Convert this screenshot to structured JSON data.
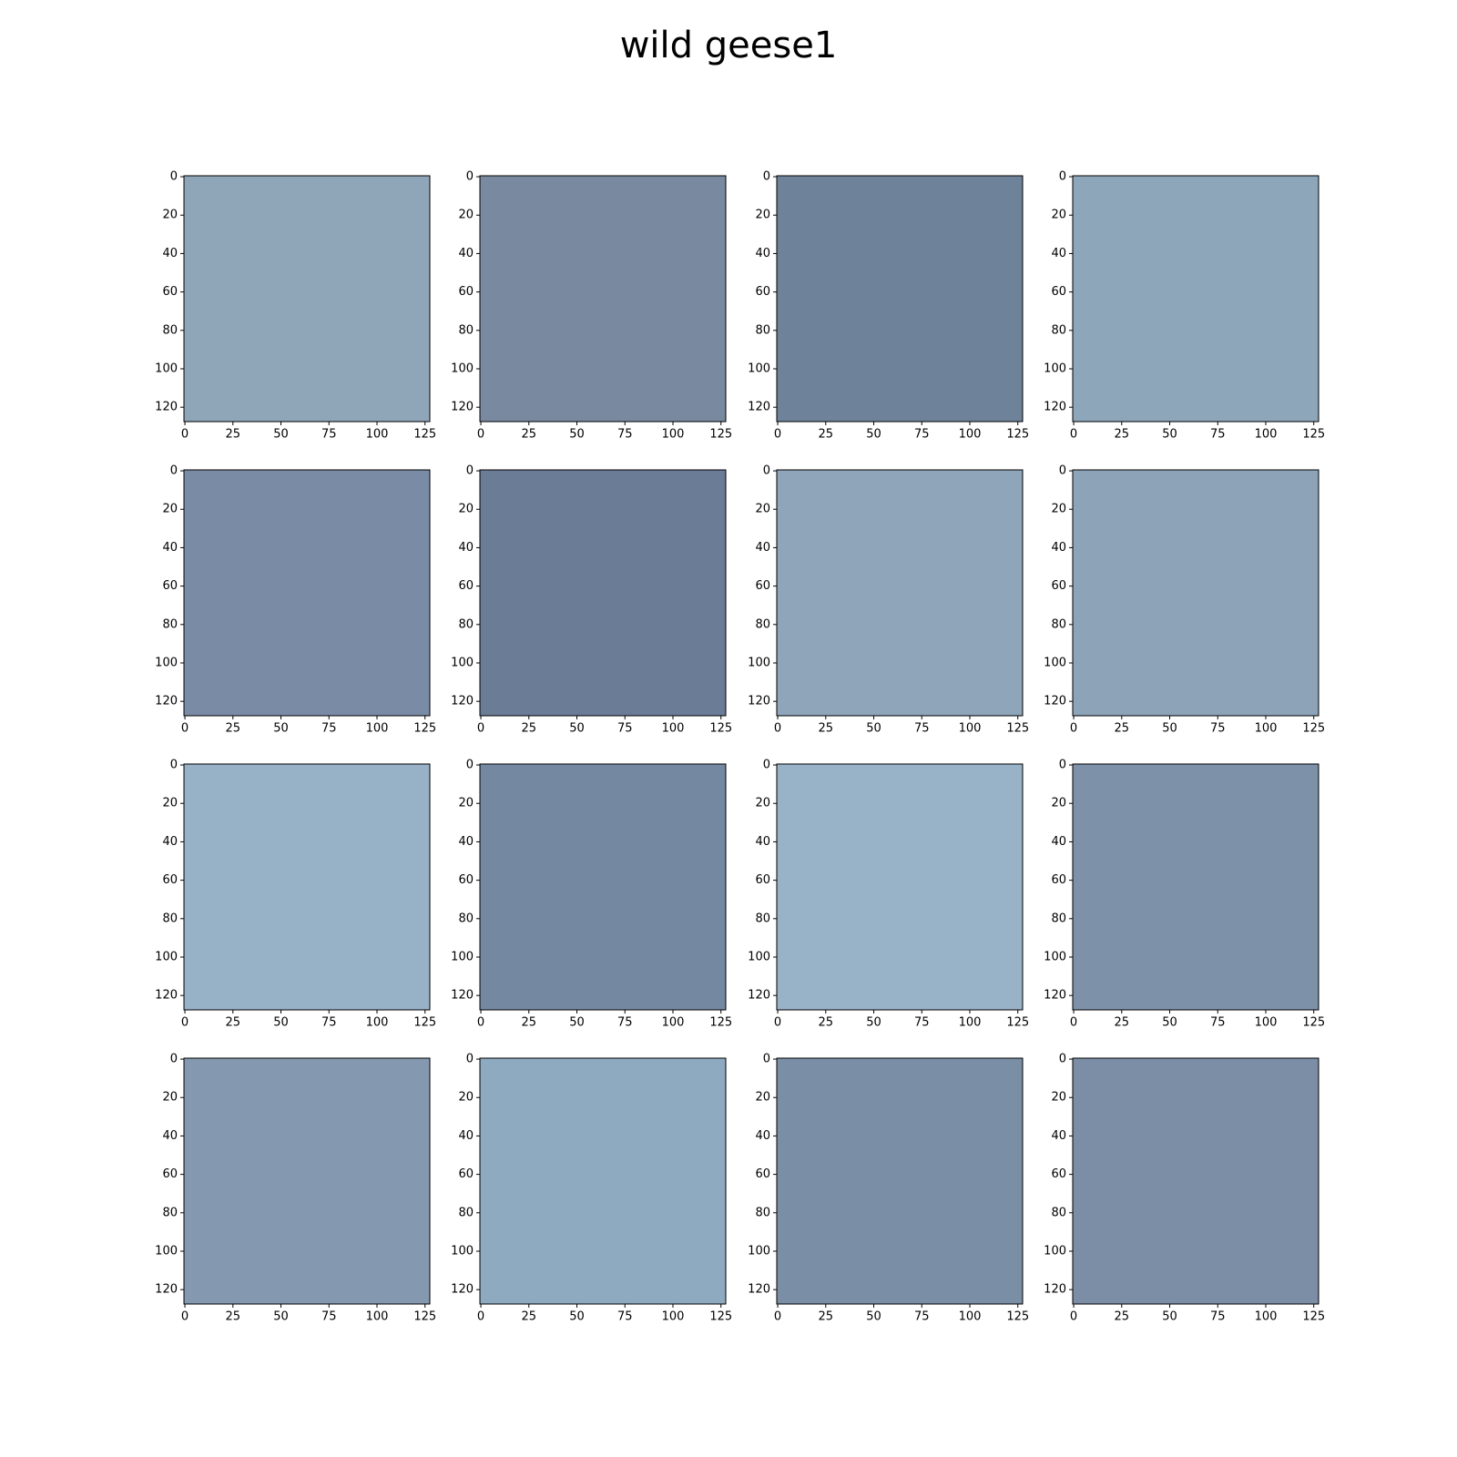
{
  "title": "wild geese1",
  "chart_data": [
    {
      "type": "image",
      "color": "#8fa5b8",
      "xlim": [
        -0.5,
        127.5
      ],
      "ylim": [
        127.5,
        -0.5
      ],
      "xticks": [
        0,
        25,
        50,
        75,
        100,
        125
      ],
      "yticks": [
        0,
        20,
        40,
        60,
        80,
        100,
        120
      ]
    },
    {
      "type": "image",
      "color": "#7889a0",
      "xlim": [
        -0.5,
        127.5
      ],
      "ylim": [
        127.5,
        -0.5
      ],
      "xticks": [
        0,
        25,
        50,
        75,
        100,
        125
      ],
      "yticks": [
        0,
        20,
        40,
        60,
        80,
        100,
        120
      ]
    },
    {
      "type": "image",
      "color": "#6e8299",
      "xlim": [
        -0.5,
        127.5
      ],
      "ylim": [
        127.5,
        -0.5
      ],
      "xticks": [
        0,
        25,
        50,
        75,
        100,
        125
      ],
      "yticks": [
        0,
        20,
        40,
        60,
        80,
        100,
        120
      ]
    },
    {
      "type": "image",
      "color": "#8ea6ba",
      "xlim": [
        -0.5,
        127.5
      ],
      "ylim": [
        127.5,
        -0.5
      ],
      "xticks": [
        0,
        25,
        50,
        75,
        100,
        125
      ],
      "yticks": [
        0,
        20,
        40,
        60,
        80,
        100,
        120
      ]
    },
    {
      "type": "image",
      "color": "#7a8ca5",
      "xlim": [
        -0.5,
        127.5
      ],
      "ylim": [
        127.5,
        -0.5
      ],
      "xticks": [
        0,
        25,
        50,
        75,
        100,
        125
      ],
      "yticks": [
        0,
        20,
        40,
        60,
        80,
        100,
        120
      ]
    },
    {
      "type": "image",
      "color": "#6b7c96",
      "xlim": [
        -0.5,
        127.5
      ],
      "ylim": [
        127.5,
        -0.5
      ],
      "xticks": [
        0,
        25,
        50,
        75,
        100,
        125
      ],
      "yticks": [
        0,
        20,
        40,
        60,
        80,
        100,
        120
      ]
    },
    {
      "type": "image",
      "color": "#8ea5ba",
      "xlim": [
        -0.5,
        127.5
      ],
      "ylim": [
        127.5,
        -0.5
      ],
      "xticks": [
        0,
        25,
        50,
        75,
        100,
        125
      ],
      "yticks": [
        0,
        20,
        40,
        60,
        80,
        100,
        120
      ]
    },
    {
      "type": "image",
      "color": "#8ca3b8",
      "xlim": [
        -0.5,
        127.5
      ],
      "ylim": [
        127.5,
        -0.5
      ],
      "xticks": [
        0,
        25,
        50,
        75,
        100,
        125
      ],
      "yticks": [
        0,
        20,
        40,
        60,
        80,
        100,
        120
      ]
    },
    {
      "type": "image",
      "color": "#97b1c6",
      "xlim": [
        -0.5,
        127.5
      ],
      "ylim": [
        127.5,
        -0.5
      ],
      "xticks": [
        0,
        25,
        50,
        75,
        100,
        125
      ],
      "yticks": [
        0,
        20,
        40,
        60,
        80,
        100,
        120
      ]
    },
    {
      "type": "image",
      "color": "#7488a2",
      "xlim": [
        -0.5,
        127.5
      ],
      "ylim": [
        127.5,
        -0.5
      ],
      "xticks": [
        0,
        25,
        50,
        75,
        100,
        125
      ],
      "yticks": [
        0,
        20,
        40,
        60,
        80,
        100,
        120
      ]
    },
    {
      "type": "image",
      "color": "#98b2c8",
      "xlim": [
        -0.5,
        127.5
      ],
      "ylim": [
        127.5,
        -0.5
      ],
      "xticks": [
        0,
        25,
        50,
        75,
        100,
        125
      ],
      "yticks": [
        0,
        20,
        40,
        60,
        80,
        100,
        120
      ]
    },
    {
      "type": "image",
      "color": "#7d91a8",
      "xlim": [
        -0.5,
        127.5
      ],
      "ylim": [
        127.5,
        -0.5
      ],
      "xticks": [
        0,
        25,
        50,
        75,
        100,
        125
      ],
      "yticks": [
        0,
        20,
        40,
        60,
        80,
        100,
        120
      ]
    },
    {
      "type": "image",
      "color": "#8499b0",
      "xlim": [
        -0.5,
        127.5
      ],
      "ylim": [
        127.5,
        -0.5
      ],
      "xticks": [
        0,
        25,
        50,
        75,
        100,
        125
      ],
      "yticks": [
        0,
        20,
        40,
        60,
        80,
        100,
        120
      ]
    },
    {
      "type": "image",
      "color": "#8eaac0",
      "xlim": [
        -0.5,
        127.5
      ],
      "ylim": [
        127.5,
        -0.5
      ],
      "xticks": [
        0,
        25,
        50,
        75,
        100,
        125
      ],
      "yticks": [
        0,
        20,
        40,
        60,
        80,
        100,
        120
      ]
    },
    {
      "type": "image",
      "color": "#7a8ea6",
      "xlim": [
        -0.5,
        127.5
      ],
      "ylim": [
        127.5,
        -0.5
      ],
      "xticks": [
        0,
        25,
        50,
        75,
        100,
        125
      ],
      "yticks": [
        0,
        20,
        40,
        60,
        80,
        100,
        120
      ]
    },
    {
      "type": "image",
      "color": "#7b8ea6",
      "xlim": [
        -0.5,
        127.5
      ],
      "ylim": [
        127.5,
        -0.5
      ],
      "xticks": [
        0,
        25,
        50,
        75,
        100,
        125
      ],
      "yticks": [
        0,
        20,
        40,
        60,
        80,
        100,
        120
      ]
    }
  ]
}
